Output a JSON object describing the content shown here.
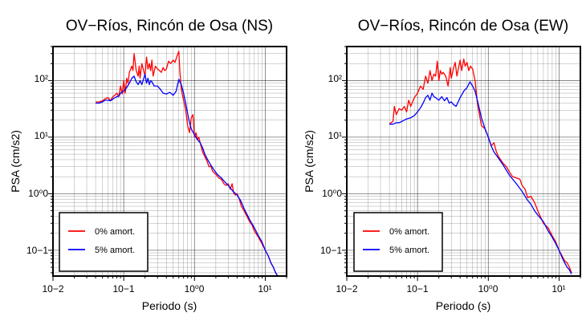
{
  "chart_data": [
    {
      "type": "line",
      "title": "OV−Ríos, Rincón de Osa (NS)",
      "xlabel": "Periodo (s)",
      "ylabel": "PSA (cm/s2)",
      "xscale": "log",
      "yscale": "log",
      "xlim": [
        0.01,
        20
      ],
      "ylim": [
        0.035,
        400
      ],
      "grid": true,
      "legend_position": "bottom-left",
      "x_tick_labels": [
        "10−2",
        "10−1",
        "10⁰0",
        "10¹"
      ],
      "y_tick_labels": [
        "10−1",
        "10⁰0",
        "10¹",
        "10²"
      ],
      "series": [
        {
          "name": "0% amort.",
          "color": "#ff0000",
          "x": [
            0.04,
            0.045,
            0.05,
            0.055,
            0.06,
            0.065,
            0.07,
            0.075,
            0.08,
            0.085,
            0.09,
            0.095,
            0.1,
            0.105,
            0.11,
            0.115,
            0.12,
            0.13,
            0.135,
            0.14,
            0.15,
            0.16,
            0.165,
            0.17,
            0.18,
            0.2,
            0.21,
            0.22,
            0.23,
            0.24,
            0.25,
            0.26,
            0.28,
            0.3,
            0.32,
            0.34,
            0.36,
            0.38,
            0.4,
            0.43,
            0.46,
            0.5,
            0.53,
            0.56,
            0.6,
            0.62,
            0.65,
            0.7,
            0.75,
            0.8,
            0.85,
            0.9,
            0.95,
            1.0,
            1.05,
            1.1,
            1.15,
            1.2,
            1.3,
            1.4,
            1.5,
            1.6,
            1.7,
            1.8,
            2.0,
            2.2,
            2.4,
            2.6,
            2.8,
            3.0,
            3.2,
            3.4,
            3.6,
            3.8,
            4.0,
            4.3,
            4.6,
            5.0,
            5.5,
            6.0,
            6.5,
            7.0,
            8.0,
            9.0,
            10.0,
            11.0,
            12.0,
            13.0,
            14.0,
            15.0
          ],
          "y": [
            42,
            42,
            44,
            48,
            50,
            44,
            52,
            55,
            60,
            52,
            80,
            58,
            100,
            60,
            110,
            90,
            140,
            180,
            150,
            300,
            150,
            120,
            180,
            110,
            200,
            120,
            260,
            160,
            200,
            150,
            230,
            120,
            180,
            160,
            150,
            140,
            170,
            150,
            160,
            220,
            200,
            230,
            210,
            260,
            330,
            150,
            70,
            45,
            30,
            16,
            12,
            22,
            25,
            10,
            12,
            9,
            10,
            8,
            5.5,
            4.5,
            3.8,
            3.0,
            3.1,
            2.5,
            2.2,
            1.9,
            1.8,
            1.5,
            1.4,
            1.5,
            1.2,
            1.5,
            1.0,
            0.95,
            1.0,
            0.8,
            0.6,
            0.5,
            0.4,
            0.32,
            0.28,
            0.22,
            0.17,
            0.13,
            0.1,
            0.08,
            0.06,
            0.05,
            0.04,
            0.035
          ]
        },
        {
          "name": "5% amort.",
          "color": "#0000ff",
          "x": [
            0.04,
            0.045,
            0.05,
            0.055,
            0.06,
            0.065,
            0.07,
            0.075,
            0.08,
            0.085,
            0.09,
            0.1,
            0.11,
            0.12,
            0.13,
            0.14,
            0.15,
            0.16,
            0.17,
            0.18,
            0.2,
            0.21,
            0.22,
            0.23,
            0.24,
            0.25,
            0.27,
            0.3,
            0.33,
            0.36,
            0.4,
            0.45,
            0.5,
            0.55,
            0.6,
            0.65,
            0.7,
            0.75,
            0.8,
            0.85,
            0.9,
            1.0,
            1.1,
            1.2,
            1.3,
            1.4,
            1.5,
            1.7,
            1.9,
            2.1,
            2.4,
            2.7,
            3.0,
            3.5,
            4.0,
            4.5,
            5.0,
            6.0,
            7.0,
            8.0,
            9.0,
            10.0,
            11.0,
            12.0,
            13.0,
            14.0,
            15.0
          ],
          "y": [
            40,
            40,
            42,
            45,
            45,
            44,
            47,
            50,
            52,
            53,
            60,
            65,
            75,
            90,
            110,
            120,
            95,
            85,
            100,
            85,
            130,
            90,
            110,
            85,
            100,
            95,
            80,
            80,
            70,
            60,
            58,
            62,
            55,
            65,
            105,
            85,
            60,
            40,
            26,
            18,
            14,
            11,
            9,
            8,
            6.5,
            5.0,
            4.2,
            3.2,
            2.6,
            2.2,
            1.9,
            1.6,
            1.4,
            1.1,
            0.95,
            0.75,
            0.55,
            0.35,
            0.25,
            0.18,
            0.14,
            0.1,
            0.08,
            0.06,
            0.05,
            0.04,
            0.035
          ]
        }
      ]
    },
    {
      "type": "line",
      "title": "OV−Ríos, Rincón de Osa (EW)",
      "xlabel": "Periodo (s)",
      "ylabel": "PSA (cm/s2)",
      "xscale": "log",
      "yscale": "log",
      "xlim": [
        0.01,
        20
      ],
      "ylim": [
        0.035,
        400
      ],
      "grid": true,
      "legend_position": "bottom-left",
      "x_tick_labels": [
        "10−2",
        "10−1",
        "10⁰0",
        "10¹"
      ],
      "y_tick_labels": [
        "10−1",
        "10⁰0",
        "10¹",
        "10²"
      ],
      "series": [
        {
          "name": "0% amort.",
          "color": "#ff0000",
          "x": [
            0.04,
            0.042,
            0.045,
            0.047,
            0.05,
            0.055,
            0.06,
            0.065,
            0.07,
            0.075,
            0.08,
            0.09,
            0.1,
            0.11,
            0.12,
            0.13,
            0.14,
            0.15,
            0.16,
            0.17,
            0.18,
            0.19,
            0.2,
            0.21,
            0.22,
            0.23,
            0.25,
            0.27,
            0.29,
            0.3,
            0.32,
            0.34,
            0.36,
            0.38,
            0.4,
            0.42,
            0.45,
            0.47,
            0.5,
            0.53,
            0.56,
            0.6,
            0.65,
            0.7,
            0.75,
            0.8,
            0.9,
            1.0,
            1.1,
            1.2,
            1.3,
            1.4,
            1.6,
            1.8,
            2.0,
            2.2,
            2.5,
            2.8,
            3.0,
            3.3,
            3.6,
            4.0,
            4.5,
            5.0,
            6.0,
            7.0,
            8.0,
            9.0,
            10.0,
            11.0,
            12.0,
            13.0,
            14.0,
            15.0
          ],
          "y": [
            17,
            18,
            19,
            35,
            25,
            32,
            30,
            35,
            28,
            45,
            35,
            50,
            60,
            80,
            70,
            120,
            90,
            150,
            100,
            130,
            120,
            220,
            100,
            150,
            130,
            140,
            120,
            80,
            170,
            110,
            160,
            210,
            120,
            170,
            230,
            150,
            240,
            180,
            210,
            150,
            180,
            160,
            100,
            40,
            25,
            16,
            14,
            10,
            7,
            8,
            5.5,
            4.5,
            3.5,
            3.0,
            2.4,
            2.0,
            1.9,
            1.8,
            1.4,
            1.2,
            0.85,
            0.9,
            0.7,
            0.5,
            0.3,
            0.25,
            0.18,
            0.14,
            0.1,
            0.08,
            0.065,
            0.06,
            0.05,
            0.04
          ]
        },
        {
          "name": "5% amort.",
          "color": "#0000ff",
          "x": [
            0.04,
            0.045,
            0.05,
            0.055,
            0.06,
            0.065,
            0.07,
            0.08,
            0.09,
            0.1,
            0.11,
            0.12,
            0.13,
            0.14,
            0.15,
            0.16,
            0.17,
            0.18,
            0.2,
            0.22,
            0.24,
            0.26,
            0.28,
            0.3,
            0.32,
            0.35,
            0.4,
            0.45,
            0.5,
            0.55,
            0.6,
            0.65,
            0.7,
            0.8,
            0.9,
            1.0,
            1.1,
            1.2,
            1.4,
            1.6,
            1.8,
            2.0,
            2.3,
            2.6,
            3.0,
            3.5,
            4.0,
            4.5,
            5.0,
            6.0,
            7.0,
            8.0,
            9.0,
            10.0,
            11.0,
            12.0,
            13.0,
            14.0,
            15.0
          ],
          "y": [
            17,
            17,
            18,
            18,
            19,
            20,
            21,
            22,
            24,
            28,
            33,
            40,
            50,
            55,
            45,
            60,
            52,
            50,
            45,
            52,
            44,
            50,
            40,
            42,
            38,
            35,
            50,
            65,
            75,
            95,
            80,
            65,
            45,
            22,
            14,
            10,
            7,
            5.5,
            4.2,
            3.3,
            2.6,
            2.1,
            1.7,
            1.4,
            1.1,
            0.8,
            0.65,
            0.5,
            0.42,
            0.32,
            0.22,
            0.17,
            0.13,
            0.1,
            0.075,
            0.06,
            0.05,
            0.045,
            0.038
          ]
        }
      ]
    }
  ]
}
